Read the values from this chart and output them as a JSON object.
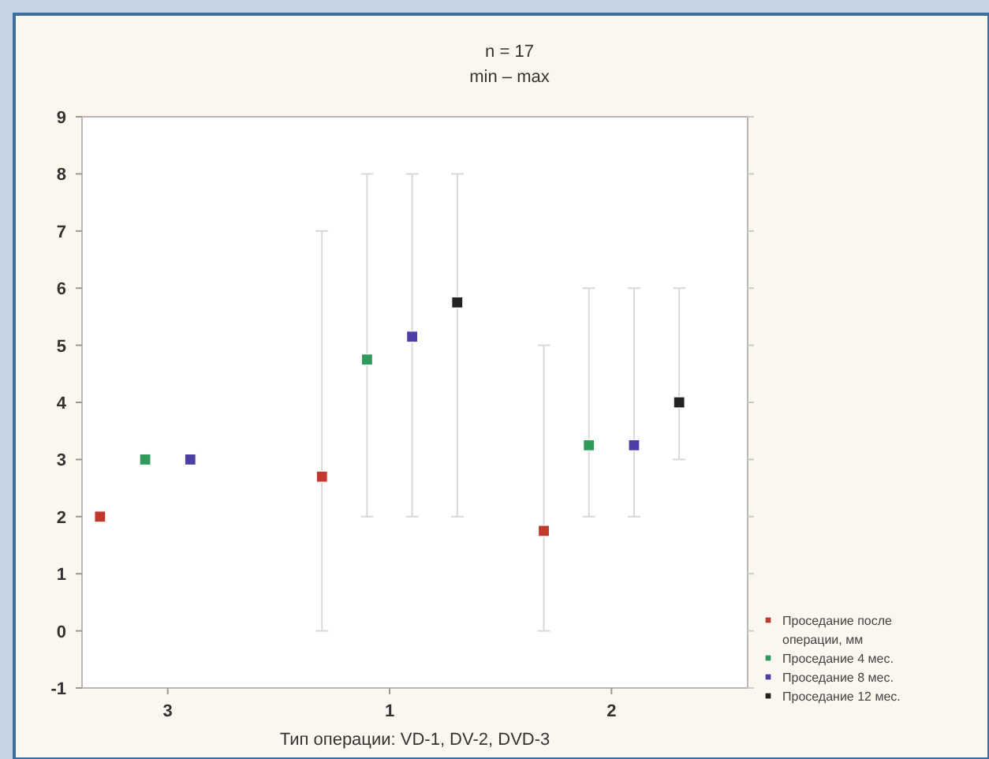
{
  "chart_data": {
    "type": "scatter",
    "title": "n = 17",
    "subtitle": "min – max",
    "xlabel": "Тип операции: VD-1, DV-2, DVD-3",
    "categories": [
      "3",
      "1",
      "2"
    ],
    "ylim": [
      -1,
      9
    ],
    "yticks": [
      -1,
      0,
      1,
      2,
      3,
      4,
      5,
      6,
      7,
      8,
      9
    ],
    "grid": false,
    "legend": "bottom right",
    "marker": "square",
    "series": [
      {
        "name": "Проседание после операции, мм",
        "color": "#c0392f",
        "values": [
          2,
          2.7,
          1.75
        ],
        "errors": [
          null,
          [
            0,
            7
          ],
          [
            0,
            5
          ]
        ]
      },
      {
        "name": "Проседание 4 мес.",
        "color": "#2f9a5a",
        "values": [
          3,
          4.75,
          3.25
        ],
        "errors": [
          null,
          [
            2,
            8
          ],
          [
            2,
            6
          ]
        ]
      },
      {
        "name": "Проседание 8 мес.",
        "color": "#4b3fa6",
        "values": [
          3,
          5.15,
          3.25
        ],
        "errors": [
          null,
          [
            2,
            8
          ],
          [
            2,
            6
          ]
        ]
      },
      {
        "name": "Проседание 12 мес.",
        "color": "#222222",
        "values": [
          null,
          5.75,
          4
        ],
        "errors": [
          null,
          [
            2,
            8
          ],
          [
            3,
            6
          ]
        ]
      }
    ]
  }
}
